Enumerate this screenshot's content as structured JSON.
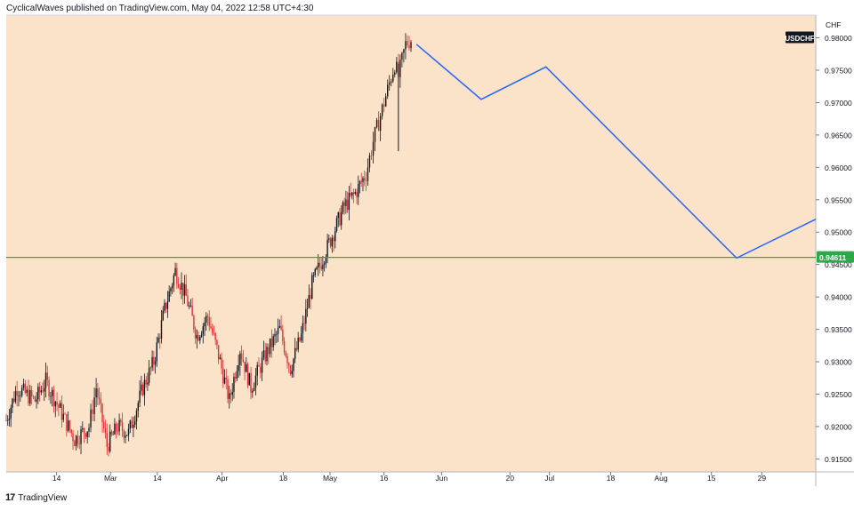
{
  "header": {
    "published_text": "CyclicalWaves published on TradingView.com, May 04, 2022 12:58 UTC+4:30"
  },
  "footer": {
    "brand": "TradingView",
    "logo_glyph": "17"
  },
  "chart_data": {
    "type": "candlestick",
    "symbol": "USDCHF",
    "currency": "CHF",
    "background_color": "#fbe3c9",
    "ylim": [
      0.913,
      0.9835
    ],
    "y_ticks": [
      0.98,
      0.975,
      0.97,
      0.965,
      0.96,
      0.955,
      0.95,
      0.945,
      0.94,
      0.935,
      0.93,
      0.925,
      0.92,
      0.915
    ],
    "y_tick_labels": [
      "0.98000",
      "0.97500",
      "0.97000",
      "0.96500",
      "0.96000",
      "0.95500",
      "0.95000",
      "0.94500",
      "0.94000",
      "0.93500",
      "0.93000",
      "0.92500",
      "0.92000",
      "0.91500"
    ],
    "x_range": [
      "2022-01-31",
      "2022-09-13"
    ],
    "x_ticks": [
      {
        "date": "2022-02-14",
        "label": "14"
      },
      {
        "date": "2022-03-01",
        "label": "Mar"
      },
      {
        "date": "2022-03-14",
        "label": "14"
      },
      {
        "date": "2022-04-01",
        "label": "Apr"
      },
      {
        "date": "2022-04-18",
        "label": "18"
      },
      {
        "date": "2022-05-01",
        "label": "May"
      },
      {
        "date": "2022-05-16",
        "label": "16"
      },
      {
        "date": "2022-06-01",
        "label": "Jun"
      },
      {
        "date": "2022-06-20",
        "label": "20"
      },
      {
        "date": "2022-07-01",
        "label": "Jul"
      },
      {
        "date": "2022-07-18",
        "label": "18"
      },
      {
        "date": "2022-08-01",
        "label": "Aug"
      },
      {
        "date": "2022-08-15",
        "label": "15"
      },
      {
        "date": "2022-08-29",
        "label": "29"
      }
    ],
    "price_path": [
      [
        "2022-01-31",
        0.921
      ],
      [
        "2022-02-03",
        0.926
      ],
      [
        "2022-02-08",
        0.924
      ],
      [
        "2022-02-11",
        0.927
      ],
      [
        "2022-02-15",
        0.9225
      ],
      [
        "2022-02-19",
        0.918
      ],
      [
        "2022-02-23",
        0.92
      ],
      [
        "2022-02-25",
        0.926
      ],
      [
        "2022-02-28",
        0.917
      ],
      [
        "2022-03-03",
        0.92
      ],
      [
        "2022-03-06",
        0.919
      ],
      [
        "2022-03-10",
        0.926
      ],
      [
        "2022-03-13",
        0.93
      ],
      [
        "2022-03-16",
        0.938
      ],
      [
        "2022-03-19",
        0.944
      ],
      [
        "2022-03-22",
        0.94
      ],
      [
        "2022-03-25",
        0.934
      ],
      [
        "2022-03-28",
        0.937
      ],
      [
        "2022-03-31",
        0.931
      ],
      [
        "2022-04-03",
        0.924
      ],
      [
        "2022-04-06",
        0.932
      ],
      [
        "2022-04-09",
        0.926
      ],
      [
        "2022-04-13",
        0.931
      ],
      [
        "2022-04-17",
        0.935
      ],
      [
        "2022-04-20",
        0.929
      ],
      [
        "2022-04-23",
        0.934
      ],
      [
        "2022-04-26",
        0.942
      ],
      [
        "2022-04-29",
        0.946
      ],
      [
        "2022-05-02",
        0.95
      ],
      [
        "2022-05-05",
        0.954
      ],
      [
        "2022-05-08",
        0.956
      ],
      [
        "2022-05-11",
        0.959
      ],
      [
        "2022-05-13",
        0.964
      ],
      [
        "2022-05-15",
        0.968
      ],
      [
        "2022-05-17",
        0.972
      ],
      [
        "2022-05-19",
        0.976
      ],
      [
        "2022-05-20",
        0.974
      ],
      [
        "2022-05-22",
        0.979
      ],
      [
        "2022-05-24",
        0.98
      ]
    ],
    "candle_volatility": 0.0014,
    "candle_up_color": "#131722",
    "candle_down_color": "#e03131",
    "projection": {
      "color": "#2962ff",
      "points": [
        [
          "2022-05-25",
          0.979
        ],
        [
          "2022-06-12",
          0.9705
        ],
        [
          "2022-06-30",
          0.9755
        ],
        [
          "2022-08-22",
          0.946
        ],
        [
          "2022-09-13",
          0.952
        ]
      ]
    },
    "horizontal_line": {
      "value": 0.94611,
      "label": "0.94611",
      "color": "#2fa84a"
    },
    "symbol_label": "USDCHF"
  }
}
